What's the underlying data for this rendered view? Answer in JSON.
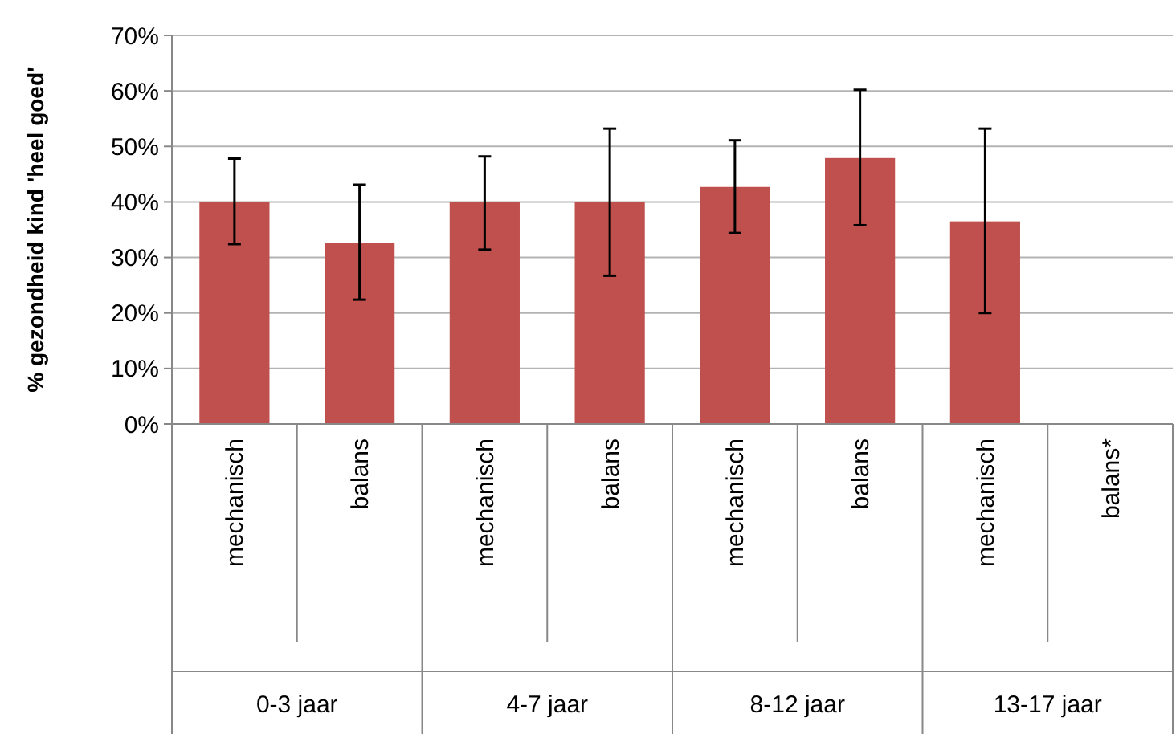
{
  "chart_data": {
    "type": "bar",
    "ylabel": "% gezondheid kind 'heel goed'",
    "categories": [
      "mechanisch",
      "balans",
      "mechanisch",
      "balans",
      "mechanisch",
      "balans",
      "mechanisch",
      "balans*"
    ],
    "values": [
      40,
      32.6,
      40,
      40,
      42.7,
      47.9,
      36.5,
      null
    ],
    "errors": [
      [
        32.4,
        47.8
      ],
      [
        22.4,
        43.1
      ],
      [
        31.4,
        48.2
      ],
      [
        26.7,
        53.2
      ],
      [
        34.4,
        51.1
      ],
      [
        35.8,
        60.2
      ],
      [
        20,
        53.2
      ],
      null
    ],
    "color": "#c0504d",
    "ylim": [
      0,
      70
    ],
    "yticks": [
      {
        "value": 0,
        "label": "0%"
      },
      {
        "value": 10,
        "label": "10%"
      },
      {
        "value": 20,
        "label": "20%"
      },
      {
        "value": 30,
        "label": "30%"
      },
      {
        "value": 40,
        "label": "40%"
      },
      {
        "value": 50,
        "label": "50%"
      },
      {
        "value": 60,
        "label": "60%"
      },
      {
        "value": 70,
        "label": "70%"
      }
    ],
    "grid": "y",
    "annotations": [
      "0-3 jaar",
      "4-7 jaar",
      "8-12 jaar",
      "13-17 jaar"
    ]
  }
}
